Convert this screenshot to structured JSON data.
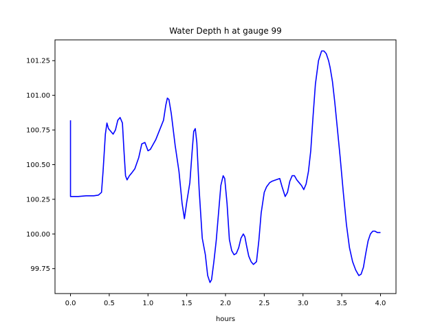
{
  "chart_data": {
    "type": "line",
    "title": "Water Depth h at gauge 99",
    "xlabel": "hours",
    "ylabel": "",
    "xlim": [
      -0.2,
      4.2
    ],
    "ylim": [
      99.57,
      101.4
    ],
    "xticks": [
      0.0,
      0.5,
      1.0,
      1.5,
      2.0,
      2.5,
      3.0,
      3.5,
      4.0
    ],
    "xtick_labels": [
      "0.0",
      "0.5",
      "1.0",
      "1.5",
      "2.0",
      "2.5",
      "3.0",
      "3.5",
      "4.0"
    ],
    "yticks": [
      99.75,
      100.0,
      100.25,
      100.5,
      100.75,
      101.0,
      101.25
    ],
    "ytick_labels": [
      "99.75",
      "100.00",
      "100.25",
      "100.50",
      "100.75",
      "101.00",
      "101.25"
    ],
    "grid": false,
    "series": [
      {
        "color": "#0000ff",
        "x": [
          0.0,
          0.0,
          0.05,
          0.1,
          0.2,
          0.3,
          0.36,
          0.4,
          0.42,
          0.45,
          0.47,
          0.49,
          0.52,
          0.55,
          0.58,
          0.61,
          0.64,
          0.67,
          0.69,
          0.71,
          0.73,
          0.76,
          0.79,
          0.83,
          0.88,
          0.92,
          0.96,
          0.98,
          1.0,
          1.03,
          1.06,
          1.1,
          1.15,
          1.2,
          1.23,
          1.25,
          1.27,
          1.3,
          1.35,
          1.4,
          1.44,
          1.47,
          1.5,
          1.54,
          1.57,
          1.59,
          1.61,
          1.63,
          1.66,
          1.7,
          1.74,
          1.77,
          1.8,
          1.82,
          1.85,
          1.88,
          1.91,
          1.94,
          1.97,
          1.99,
          2.02,
          2.05,
          2.08,
          2.11,
          2.14,
          2.17,
          2.2,
          2.23,
          2.25,
          2.27,
          2.3,
          2.33,
          2.36,
          2.4,
          2.43,
          2.46,
          2.5,
          2.53,
          2.57,
          2.6,
          2.65,
          2.7,
          2.73,
          2.77,
          2.8,
          2.83,
          2.86,
          2.89,
          2.92,
          2.95,
          2.98,
          3.01,
          3.04,
          3.07,
          3.1,
          3.13,
          3.16,
          3.2,
          3.24,
          3.27,
          3.3,
          3.33,
          3.35,
          3.38,
          3.41,
          3.44,
          3.48,
          3.52,
          3.56,
          3.6,
          3.64,
          3.68,
          3.72,
          3.75,
          3.78,
          3.81,
          3.84,
          3.87,
          3.9,
          3.93,
          3.96,
          4.0
        ],
        "y": [
          100.82,
          100.27,
          100.27,
          100.27,
          100.275,
          100.275,
          100.28,
          100.3,
          100.45,
          100.72,
          100.8,
          100.76,
          100.74,
          100.72,
          100.75,
          100.82,
          100.84,
          100.8,
          100.6,
          100.42,
          100.39,
          100.42,
          100.44,
          100.47,
          100.55,
          100.65,
          100.66,
          100.63,
          100.6,
          100.61,
          100.64,
          100.68,
          100.75,
          100.82,
          100.93,
          100.98,
          100.97,
          100.87,
          100.64,
          100.45,
          100.22,
          100.11,
          100.23,
          100.37,
          100.6,
          100.74,
          100.76,
          100.66,
          100.32,
          99.97,
          99.85,
          99.7,
          99.65,
          99.67,
          99.8,
          99.95,
          100.15,
          100.35,
          100.42,
          100.4,
          100.22,
          99.96,
          99.88,
          99.85,
          99.86,
          99.9,
          99.97,
          100.0,
          99.98,
          99.92,
          99.84,
          99.8,
          99.78,
          99.8,
          99.95,
          100.15,
          100.3,
          100.34,
          100.37,
          100.38,
          100.39,
          100.4,
          100.34,
          100.27,
          100.3,
          100.38,
          100.42,
          100.42,
          100.39,
          100.37,
          100.35,
          100.32,
          100.36,
          100.45,
          100.6,
          100.85,
          101.08,
          101.25,
          101.32,
          101.32,
          101.3,
          101.25,
          101.2,
          101.1,
          100.95,
          100.78,
          100.55,
          100.3,
          100.07,
          99.9,
          99.8,
          99.74,
          99.7,
          99.71,
          99.76,
          99.86,
          99.95,
          100.0,
          100.02,
          100.02,
          100.01,
          100.01
        ]
      }
    ]
  }
}
